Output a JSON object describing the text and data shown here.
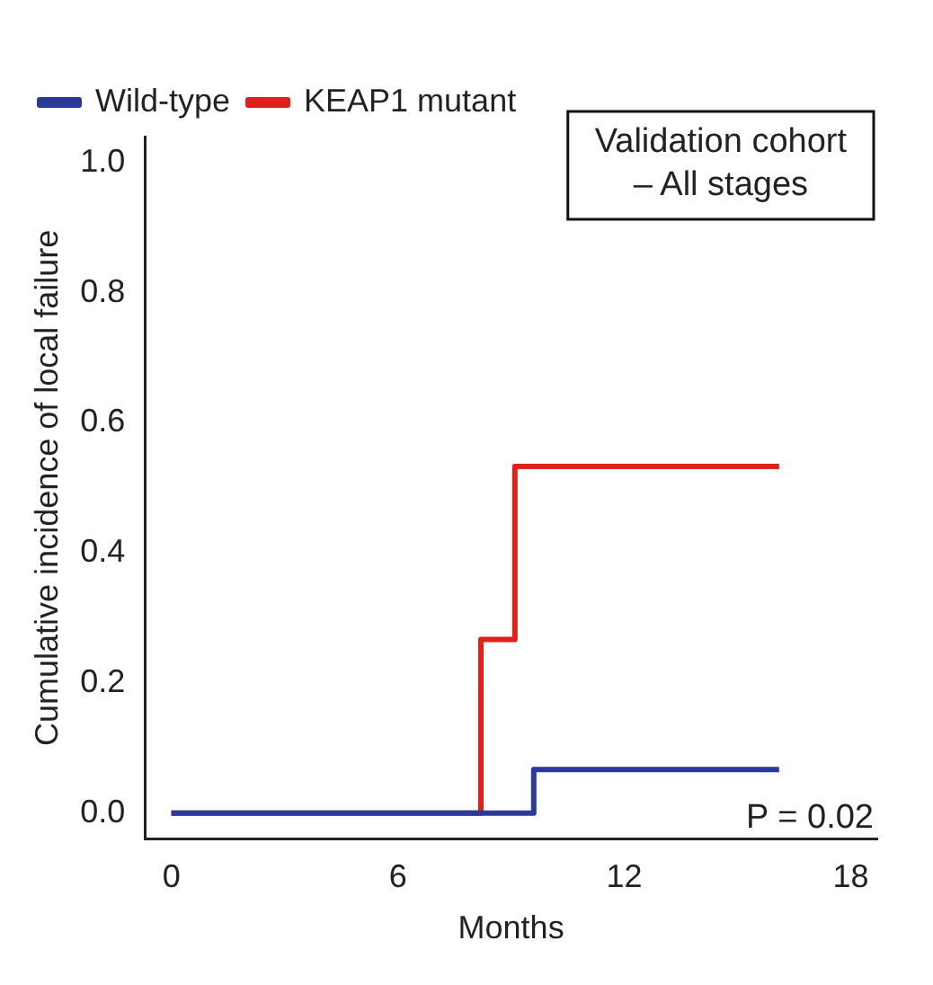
{
  "chart_data": {
    "type": "step",
    "xlabel": "Months",
    "ylabel": "Cumulative incidence of local failure",
    "series": [
      {
        "name": "Wild-type",
        "color": "#2b3a9a",
        "x": [
          0,
          9.6,
          16.1
        ],
        "values": [
          0,
          0.067,
          0.067
        ]
      },
      {
        "name": "KEAP1 mutant",
        "color": "#e0201b",
        "x": [
          0,
          8.2,
          9.1,
          16.1
        ],
        "values": [
          0,
          0.267,
          0.533,
          0.533
        ]
      }
    ],
    "xlim": [
      -0.7,
      18.7
    ],
    "xticks": [
      0,
      6,
      12,
      18
    ],
    "ylim": [
      -0.04,
      1.04
    ],
    "yticks": [
      {
        "value": 0,
        "label": "0.0"
      },
      {
        "value": 0.2,
        "label": "0.2"
      },
      {
        "value": 0.4,
        "label": "0.4"
      },
      {
        "value": 0.6,
        "label": "0.6"
      },
      {
        "value": 0.8,
        "label": "0.8"
      },
      {
        "value": 1,
        "label": "1.0"
      }
    ],
    "grid": false,
    "legend": "top left",
    "marker": "none",
    "line_style": "solid",
    "annotations": [
      "Validation cohort\n– All stages",
      "P = 0.02"
    ]
  }
}
